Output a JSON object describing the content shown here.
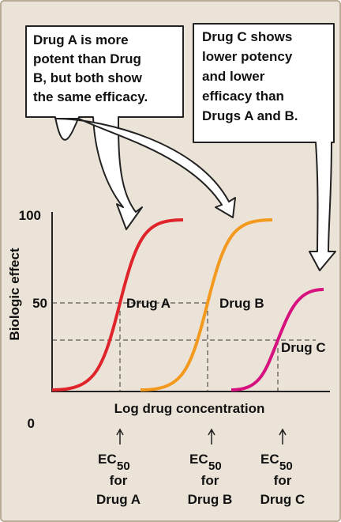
{
  "callouts": [
    {
      "lines": [
        "Drug A is more",
        "potent than Drug",
        "B, but both show",
        "the same efficacy."
      ]
    },
    {
      "lines": [
        "Drug C shows",
        "lower potency",
        "and lower",
        "efficacy than",
        "Drugs A and B."
      ]
    }
  ],
  "y_axis": {
    "label": "Biologic effect",
    "ticks": [
      "100",
      "50",
      "0"
    ]
  },
  "x_axis": {
    "label": "Log drug concentration"
  },
  "curves": [
    {
      "label": "Drug A"
    },
    {
      "label": "Drug B"
    },
    {
      "label": "Drug C"
    }
  ],
  "ec50_labels": [
    {
      "symbol": "EC",
      "subscript": "50",
      "line2": "for",
      "line3": "Drug A"
    },
    {
      "symbol": "EC",
      "subscript": "50",
      "line2": "for",
      "line3": "Drug B"
    },
    {
      "symbol": "EC",
      "subscript": "50",
      "line2": "for",
      "line3": "Drug C"
    }
  ]
}
